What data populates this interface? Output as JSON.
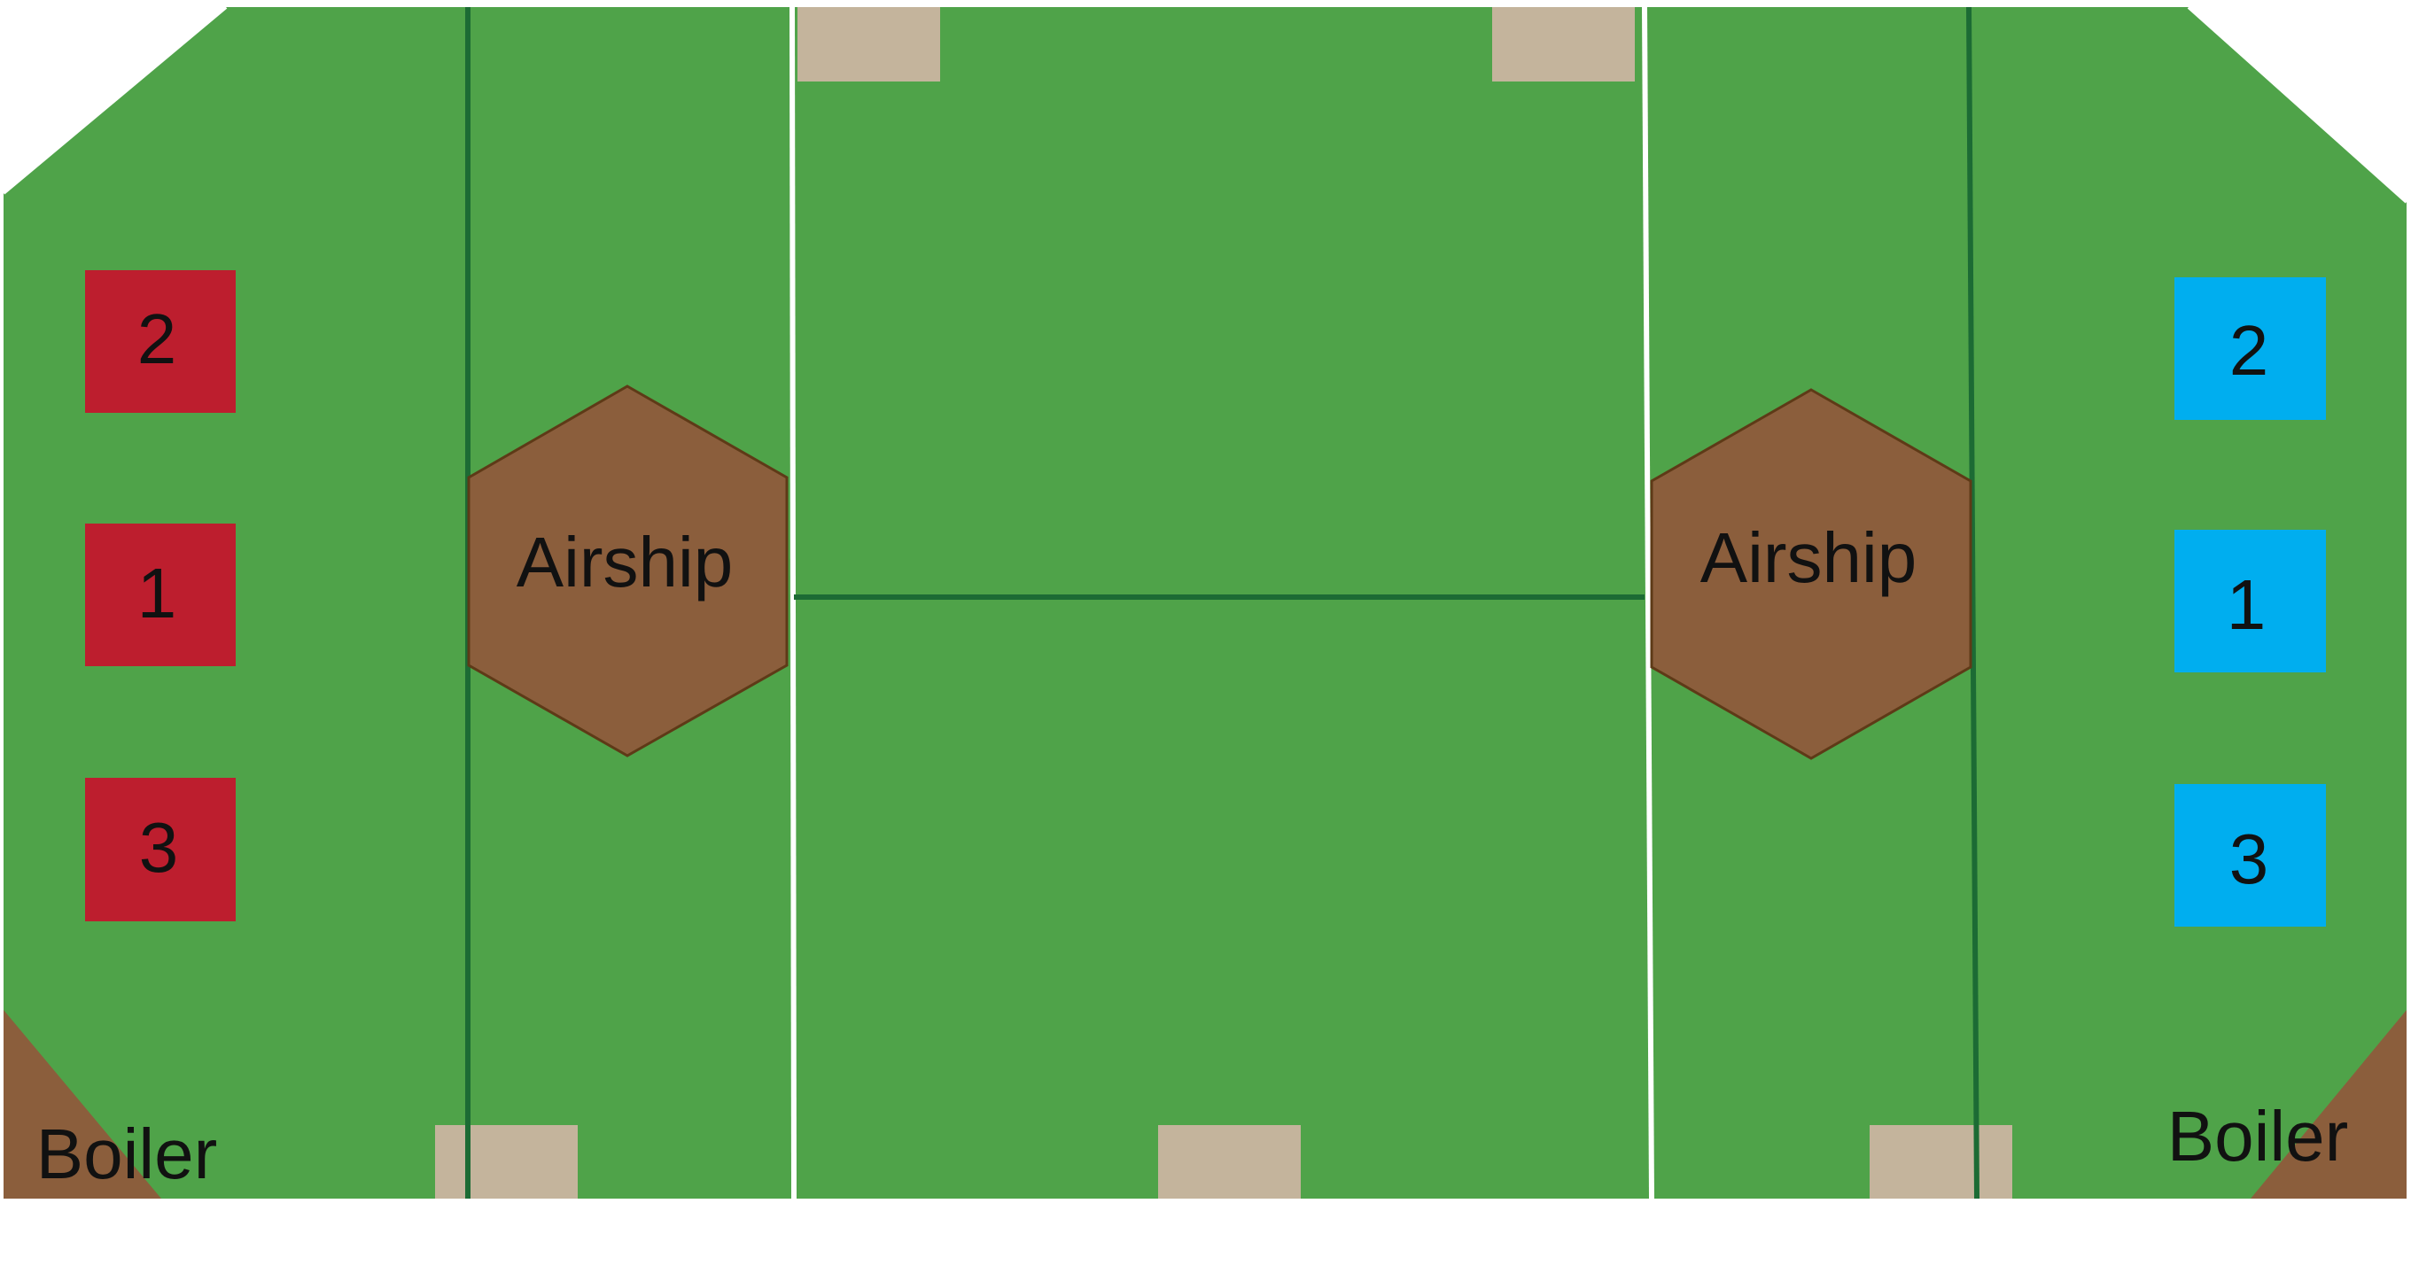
{
  "colors": {
    "background": "#ffffff",
    "field": "#4fa349",
    "white_line": "#ffffff",
    "dark_line": "#1c6b34",
    "tan_pad": "#c4b49c",
    "airship_fill": "#8b5e3c",
    "airship_stroke": "#5e3a17",
    "boiler_fill": "#8b5e3c",
    "red_station": "#bd1e2e",
    "blue_station": "#00aeef",
    "label_text": "#111111"
  },
  "field": {
    "left_airship_label": "Airship",
    "right_airship_label": "Airship",
    "left_boiler_label": "Boiler",
    "right_boiler_label": "Boiler"
  },
  "red_stations": [
    {
      "label": "2"
    },
    {
      "label": "1"
    },
    {
      "label": "3"
    }
  ],
  "blue_stations": [
    {
      "label": "2"
    },
    {
      "label": "1"
    },
    {
      "label": "3"
    }
  ]
}
